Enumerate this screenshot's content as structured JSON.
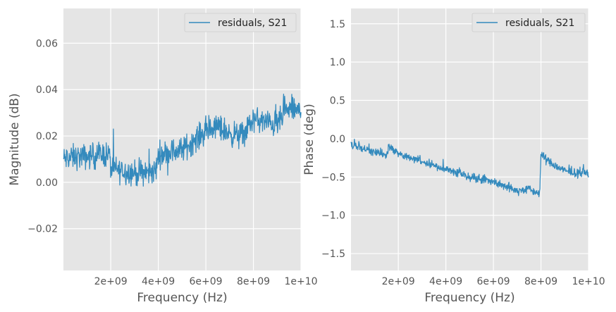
{
  "chart_data": [
    {
      "type": "line",
      "xlabel": "Frequency (Hz)",
      "ylabel": "Magnitude (dB)",
      "xlim": [
        10000000,
        10000000000
      ],
      "ylim": [
        -0.038,
        0.075
      ],
      "x_ticks": [
        {
          "value": 2000000000,
          "label": "2e+09"
        },
        {
          "value": 4000000000,
          "label": "4e+09"
        },
        {
          "value": 6000000000,
          "label": "6e+09"
        },
        {
          "value": 8000000000,
          "label": "8e+09"
        },
        {
          "value": 10000000000,
          "label": "1e+10"
        }
      ],
      "y_ticks": [
        {
          "value": -0.02,
          "label": "−0.02"
        },
        {
          "value": 0.0,
          "label": "0.00"
        },
        {
          "value": 0.02,
          "label": "0.02"
        },
        {
          "value": 0.04,
          "label": "0.04"
        },
        {
          "value": 0.06,
          "label": "0.06"
        }
      ],
      "grid": true,
      "legend_position": "top-right",
      "series": [
        {
          "name": "residuals, S21",
          "color": "#348abd",
          "x": [
            10000000,
            500000000,
            1000000000,
            1500000000,
            1950000000,
            2000000000,
            2500000000,
            3000000000,
            3500000000,
            3900000000,
            4000000000,
            4500000000,
            5000000000,
            5500000000,
            6000000000,
            6500000000,
            7000000000,
            7500000000,
            8000000000,
            8500000000,
            9000000000,
            9500000000,
            10000000000
          ],
          "values": [
            0.01,
            0.011,
            0.011,
            0.012,
            0.012,
            0.006,
            0.005,
            0.004,
            0.004,
            0.005,
            0.012,
            0.013,
            0.014,
            0.018,
            0.022,
            0.024,
            0.021,
            0.02,
            0.027,
            0.026,
            0.025,
            0.032,
            0.03
          ],
          "noise": 0.008
        }
      ]
    },
    {
      "type": "line",
      "xlabel": "Frequency (Hz)",
      "ylabel": "Phase (deg)",
      "xlim": [
        10000000,
        10000000000
      ],
      "ylim": [
        -1.72,
        1.7
      ],
      "x_ticks": [
        {
          "value": 2000000000,
          "label": "2e+09"
        },
        {
          "value": 4000000000,
          "label": "4e+09"
        },
        {
          "value": 6000000000,
          "label": "6e+09"
        },
        {
          "value": 8000000000,
          "label": "8e+09"
        },
        {
          "value": 10000000000,
          "label": "1e+10"
        }
      ],
      "y_ticks": [
        {
          "value": -1.5,
          "label": "−1.5"
        },
        {
          "value": -1.0,
          "label": "−1.0"
        },
        {
          "value": -0.5,
          "label": "−0.5"
        },
        {
          "value": 0.0,
          "label": "0.0"
        },
        {
          "value": 0.5,
          "label": "0.5"
        },
        {
          "value": 1.0,
          "label": "1.0"
        },
        {
          "value": 1.5,
          "label": "1.5"
        }
      ],
      "grid": true,
      "legend_position": "top-right",
      "series": [
        {
          "name": "residuals, S21",
          "color": "#348abd",
          "x": [
            10000000,
            500000000,
            1000000000,
            1500000000,
            1600000000,
            2000000000,
            2500000000,
            3000000000,
            3500000000,
            4000000000,
            4500000000,
            5000000000,
            5500000000,
            6000000000,
            6500000000,
            7000000000,
            7500000000,
            7950000000,
            8000000000,
            8500000000,
            9000000000,
            9500000000,
            10000000000
          ],
          "values": [
            -0.08,
            -0.12,
            -0.17,
            -0.22,
            -0.1,
            -0.2,
            -0.25,
            -0.29,
            -0.35,
            -0.4,
            -0.44,
            -0.5,
            -0.52,
            -0.56,
            -0.62,
            -0.68,
            -0.66,
            -0.72,
            -0.2,
            -0.34,
            -0.42,
            -0.45,
            -0.44
          ],
          "noise": 0.08
        }
      ]
    }
  ]
}
